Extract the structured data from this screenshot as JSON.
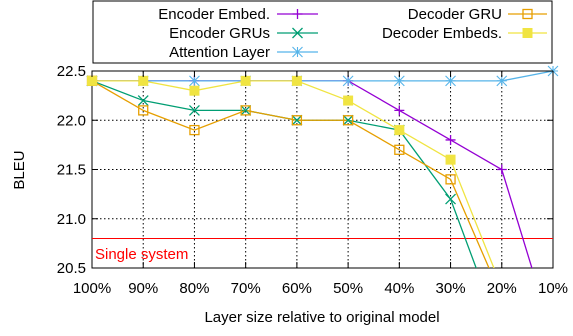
{
  "chart_data": {
    "type": "line",
    "title": "",
    "xlabel": "Layer size relative to original model",
    "ylabel": "BLEU",
    "categories": [
      "100%",
      "90%",
      "80%",
      "70%",
      "60%",
      "50%",
      "40%",
      "30%",
      "20%",
      "10%"
    ],
    "x_tick_labels": [
      "100%",
      "90%",
      "80%",
      "70%",
      "60%",
      "50%",
      "40%",
      "30%",
      "20%",
      "10%"
    ],
    "ylim": [
      20.5,
      22.5
    ],
    "y_ticks": [
      20.5,
      21.0,
      21.5,
      22.0,
      22.5
    ],
    "y_tick_labels": [
      "20.5",
      "21.0",
      "21.5",
      "22.0",
      "22.5"
    ],
    "grid": true,
    "legend_position": "top",
    "series": [
      {
        "name": "Encoder Embed.",
        "color": "#9400d3",
        "marker": "plus",
        "values": [
          22.4,
          22.4,
          22.4,
          22.4,
          22.4,
          22.4,
          22.1,
          21.8,
          21.5,
          19.8
        ]
      },
      {
        "name": "Encoder GRUs",
        "color": "#009e73",
        "marker": "x",
        "values": [
          22.4,
          22.2,
          22.1,
          22.1,
          22.0,
          22.0,
          21.9,
          21.2,
          19.8,
          null
        ]
      },
      {
        "name": "Attention Layer",
        "color": "#56b4e9",
        "marker": "asterisk",
        "values": [
          22.4,
          22.4,
          22.4,
          22.4,
          22.4,
          22.4,
          22.4,
          22.4,
          22.4,
          22.5
        ]
      },
      {
        "name": "Decoder GRU",
        "color": "#e69f00",
        "marker": "open-square",
        "values": [
          22.4,
          22.1,
          21.9,
          22.1,
          22.0,
          22.0,
          21.7,
          21.4,
          20.2,
          null
        ]
      },
      {
        "name": "Decoder Embeds.",
        "color": "#f0e442",
        "marker": "filled-square",
        "values": [
          22.4,
          22.4,
          22.3,
          22.4,
          22.4,
          22.2,
          21.9,
          21.6,
          20.3,
          null
        ]
      }
    ],
    "reference_line": {
      "label": "Single system",
      "value": 20.8,
      "color": "#ff0000"
    }
  }
}
